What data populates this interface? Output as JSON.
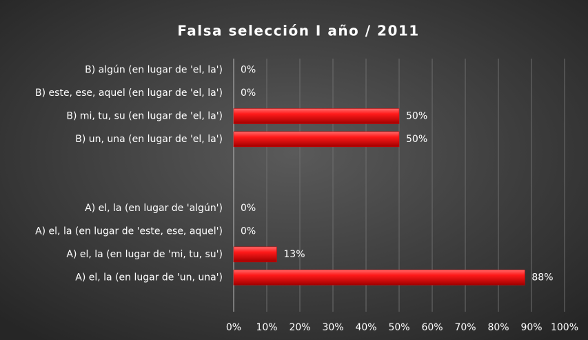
{
  "chart_data": {
    "type": "bar",
    "orientation": "horizontal",
    "title": "Falsa selección I año / 2011",
    "categories": [
      "B) algún (en lugar de 'el, la')",
      "B) este, ese, aquel (en lugar de 'el, la')",
      "B) mi, tu, su (en lugar de 'el, la')",
      "B) un, una (en lugar de 'el, la')",
      null,
      null,
      "A) el, la (en lugar de 'algún')",
      "A) el, la (en lugar de 'este, ese, aquel')",
      "A) el, la (en lugar de 'mi, tu, su')",
      "A) el, la (en lugar de 'un, una')"
    ],
    "values": [
      0,
      0,
      50,
      50,
      null,
      null,
      0,
      0,
      13,
      88
    ],
    "value_labels": [
      "0%",
      "0%",
      "50%",
      "50%",
      null,
      null,
      "0%",
      "0%",
      "13%",
      "88%"
    ],
    "color": "#e00000",
    "xlim": [
      0,
      100
    ],
    "xticks": [
      {
        "value": 0,
        "label": "0%"
      },
      {
        "value": 10,
        "label": "10%"
      },
      {
        "value": 20,
        "label": "20%"
      },
      {
        "value": 30,
        "label": "30%"
      },
      {
        "value": 40,
        "label": "40%"
      },
      {
        "value": 50,
        "label": "50%"
      },
      {
        "value": 60,
        "label": "60%"
      },
      {
        "value": 70,
        "label": "70%"
      },
      {
        "value": 80,
        "label": "80%"
      },
      {
        "value": 90,
        "label": "90%"
      },
      {
        "value": 100,
        "label": "100%"
      }
    ],
    "grid": true
  }
}
